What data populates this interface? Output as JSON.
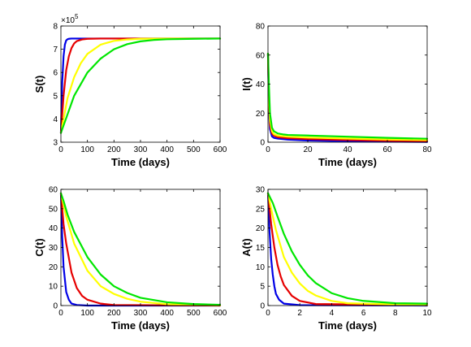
{
  "chart_data": [
    {
      "type": "line",
      "xlabel": "Time (days)",
      "ylabel": "S(t)",
      "xlim": [
        0,
        600
      ],
      "ylim": [
        3,
        8
      ],
      "xticks": [
        0,
        100,
        200,
        300,
        400,
        500,
        600
      ],
      "yticks": [
        3,
        4,
        5,
        6,
        7,
        8
      ],
      "y_multiplier_label": "×10",
      "y_multiplier_exponent": "5",
      "grid": false,
      "series": [
        {
          "color": "#0000e6",
          "x": [
            0,
            5,
            10,
            15,
            20,
            25,
            30,
            40,
            60,
            100,
            200,
            600
          ],
          "values": [
            3.4,
            5.6,
            6.7,
            7.2,
            7.38,
            7.43,
            7.45,
            7.46,
            7.46,
            7.46,
            7.46,
            7.46
          ]
        },
        {
          "color": "#e60000",
          "x": [
            0,
            10,
            20,
            30,
            40,
            50,
            60,
            80,
            100,
            150,
            200,
            600
          ],
          "values": [
            3.4,
            5.0,
            6.1,
            6.7,
            7.05,
            7.25,
            7.35,
            7.42,
            7.45,
            7.46,
            7.46,
            7.46
          ]
        },
        {
          "color": "#ffff00",
          "x": [
            0,
            25,
            50,
            75,
            100,
            150,
            200,
            250,
            300,
            400,
            600
          ],
          "values": [
            3.4,
            4.9,
            5.8,
            6.4,
            6.8,
            7.2,
            7.36,
            7.42,
            7.45,
            7.46,
            7.46
          ]
        },
        {
          "color": "#00e600",
          "x": [
            0,
            50,
            100,
            150,
            200,
            250,
            300,
            350,
            400,
            500,
            600
          ],
          "values": [
            3.4,
            5.0,
            6.0,
            6.6,
            7.0,
            7.22,
            7.34,
            7.4,
            7.43,
            7.45,
            7.46
          ]
        }
      ]
    },
    {
      "type": "line",
      "xlabel": "Time (days)",
      "ylabel": "I(t)",
      "xlim": [
        0,
        80
      ],
      "ylim": [
        0,
        80
      ],
      "xticks": [
        0,
        20,
        40,
        60,
        80
      ],
      "yticks": [
        0,
        20,
        40,
        60,
        80
      ],
      "grid": false,
      "series": [
        {
          "color": "#0000e6",
          "x": [
            0,
            0.5,
            1,
            2,
            3,
            5,
            10,
            20,
            40,
            60,
            80
          ],
          "values": [
            61,
            20,
            9,
            4,
            3,
            2.5,
            1.8,
            1.2,
            0.7,
            0.4,
            0.2
          ]
        },
        {
          "color": "#e60000",
          "x": [
            0,
            0.5,
            1,
            2,
            3,
            5,
            10,
            20,
            40,
            60,
            80
          ],
          "values": [
            61,
            25,
            12,
            6,
            4.5,
            3.5,
            2.8,
            2.2,
            1.5,
            1.0,
            0.8
          ]
        },
        {
          "color": "#ffff00",
          "x": [
            0,
            0.5,
            1,
            2,
            3,
            5,
            10,
            20,
            40,
            60,
            80
          ],
          "values": [
            61,
            30,
            15,
            7.5,
            5.5,
            4.5,
            3.8,
            3.2,
            2.5,
            1.9,
            1.5
          ]
        },
        {
          "color": "#00e600",
          "x": [
            0,
            0.5,
            1,
            2,
            3,
            5,
            8,
            10,
            20,
            40,
            60,
            80
          ],
          "values": [
            61,
            38,
            20,
            10,
            7.5,
            6,
            5.3,
            5,
            4.6,
            3.8,
            3.0,
            2.4
          ]
        }
      ]
    },
    {
      "type": "line",
      "xlabel": "Time (days)",
      "ylabel": "C(t)",
      "xlim": [
        0,
        600
      ],
      "ylim": [
        0,
        60
      ],
      "xticks": [
        0,
        100,
        200,
        300,
        400,
        500,
        600
      ],
      "yticks": [
        0,
        10,
        20,
        30,
        40,
        50,
        60
      ],
      "grid": false,
      "series": [
        {
          "color": "#0000e6",
          "x": [
            0,
            5,
            10,
            20,
            30,
            40,
            60,
            100,
            600
          ],
          "values": [
            58,
            35,
            20,
            7,
            3,
            1,
            0.3,
            0,
            0
          ]
        },
        {
          "color": "#e60000",
          "x": [
            0,
            10,
            20,
            40,
            60,
            80,
            100,
            150,
            200,
            600
          ],
          "values": [
            58,
            42,
            32,
            17,
            9,
            5,
            3,
            1,
            0.3,
            0
          ]
        },
        {
          "color": "#ffff00",
          "x": [
            0,
            20,
            50,
            100,
            150,
            200,
            250,
            300,
            400,
            600
          ],
          "values": [
            58,
            46,
            32,
            18,
            10,
            6,
            3.5,
            2,
            0.7,
            0.1
          ]
        },
        {
          "color": "#00e600",
          "x": [
            0,
            10,
            25,
            50,
            100,
            150,
            200,
            250,
            300,
            400,
            500,
            600
          ],
          "values": [
            58,
            54,
            47,
            38,
            25,
            16,
            10,
            6.5,
            4,
            1.7,
            0.8,
            0.4
          ]
        }
      ]
    },
    {
      "type": "line",
      "xlabel": "Time (days)",
      "ylabel": "A(t)",
      "xlim": [
        0,
        10
      ],
      "ylim": [
        0,
        30
      ],
      "xticks": [
        0,
        2,
        4,
        6,
        8,
        10
      ],
      "yticks": [
        0,
        5,
        10,
        15,
        20,
        25,
        30
      ],
      "grid": false,
      "series": [
        {
          "color": "#0000e6",
          "x": [
            0,
            0.1,
            0.2,
            0.3,
            0.4,
            0.5,
            0.7,
            1,
            2,
            10
          ],
          "values": [
            29,
            19,
            12,
            8,
            5,
            3,
            1.5,
            0.5,
            0.1,
            0
          ]
        },
        {
          "color": "#e60000",
          "x": [
            0,
            0.2,
            0.4,
            0.6,
            0.8,
            1,
            1.5,
            2,
            3,
            10
          ],
          "values": [
            29,
            21,
            15,
            10.5,
            7.5,
            5.3,
            2.5,
            1.2,
            0.4,
            0.1
          ]
        },
        {
          "color": "#ffff00",
          "x": [
            0,
            0.25,
            0.5,
            1,
            1.5,
            2,
            2.5,
            3,
            4,
            5,
            10
          ],
          "values": [
            29,
            24,
            19.5,
            12.5,
            8.5,
            5.7,
            3.8,
            2.6,
            1.2,
            0.6,
            0.1
          ]
        },
        {
          "color": "#00e600",
          "x": [
            0,
            0.3,
            0.6,
            1,
            1.5,
            2,
            2.5,
            3,
            4,
            5,
            6,
            8,
            10
          ],
          "values": [
            29,
            26.5,
            23,
            18.5,
            14,
            10.5,
            7.8,
            5.8,
            3.2,
            1.9,
            1.2,
            0.6,
            0.5
          ]
        }
      ]
    }
  ]
}
